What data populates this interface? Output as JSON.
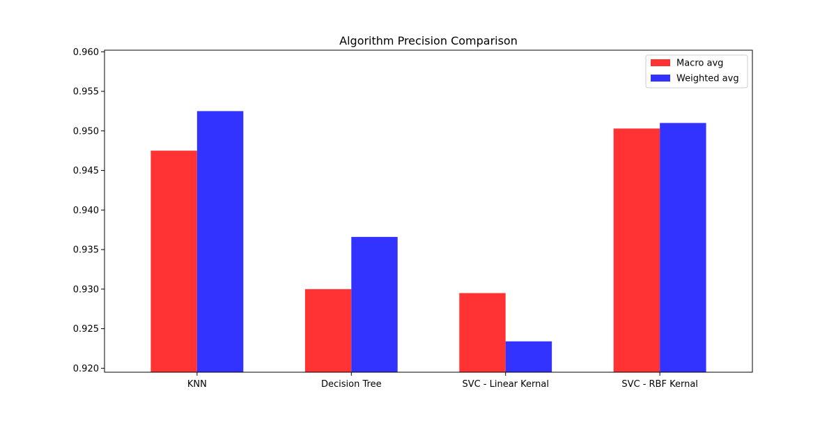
{
  "chart_data": {
    "type": "bar",
    "title": "Algorithm Precision Comparison",
    "xlabel": "",
    "ylabel": "",
    "categories": [
      "KNN",
      "Decision Tree",
      "SVC - Linear Kernal",
      "SVC - RBF Kernal"
    ],
    "series": [
      {
        "name": "Macro avg",
        "color": "#ff3333",
        "values": [
          0.9475,
          0.93,
          0.9295,
          0.9503
        ]
      },
      {
        "name": "Weighted avg",
        "color": "#3333ff",
        "values": [
          0.9525,
          0.9366,
          0.9234,
          0.951
        ]
      }
    ],
    "ylim": [
      0.9195,
      0.9602
    ],
    "yticks": [
      0.92,
      0.925,
      0.93,
      0.935,
      0.94,
      0.945,
      0.95,
      0.955,
      0.96
    ],
    "ytick_labels": [
      "0.920",
      "0.925",
      "0.930",
      "0.935",
      "0.940",
      "0.945",
      "0.950",
      "0.955",
      "0.960"
    ],
    "grid": false,
    "legend_position": "top-right"
  }
}
